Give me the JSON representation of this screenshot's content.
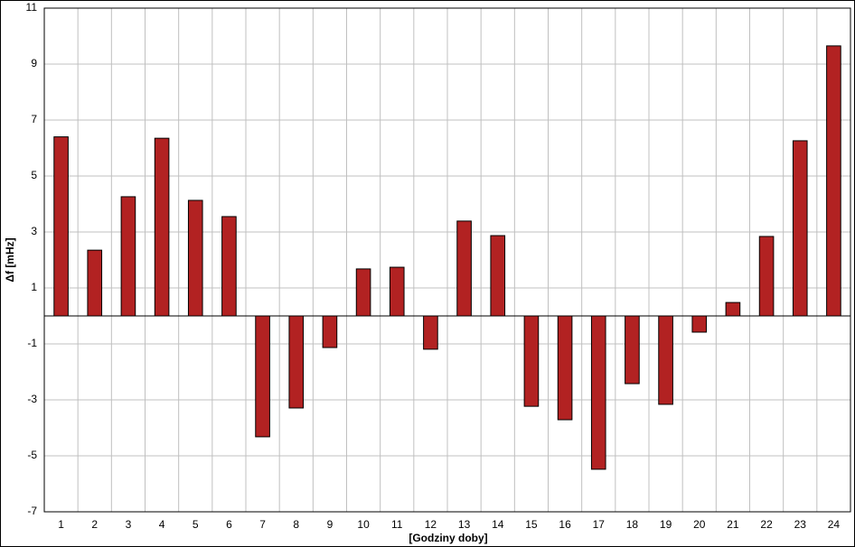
{
  "chart_data": {
    "type": "bar",
    "x_label": "[Godziny doby]",
    "y_label": "Δf [mHz]",
    "categories": [
      "1",
      "2",
      "3",
      "4",
      "5",
      "6",
      "7",
      "8",
      "9",
      "10",
      "11",
      "12",
      "13",
      "14",
      "15",
      "16",
      "17",
      "18",
      "19",
      "20",
      "21",
      "22",
      "23",
      "24"
    ],
    "values": [
      6.4,
      2.35,
      4.26,
      6.35,
      4.13,
      3.55,
      -4.32,
      -3.29,
      -1.13,
      1.68,
      1.74,
      -1.19,
      3.39,
      2.87,
      -3.23,
      -3.71,
      -5.48,
      -2.42,
      -3.16,
      -0.58,
      0.48,
      2.84,
      6.26,
      9.65
    ],
    "color": "#b22222",
    "ylim": [
      -7,
      11
    ],
    "yticks": [
      -7,
      -5,
      -3,
      -1,
      1,
      3,
      5,
      7,
      9,
      11
    ],
    "grid": true
  }
}
